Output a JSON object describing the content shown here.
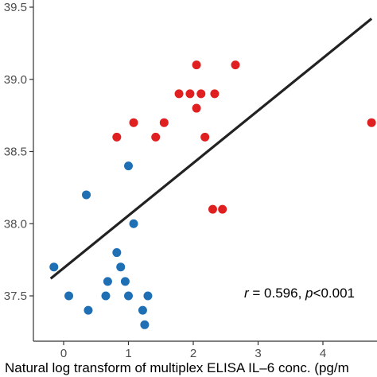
{
  "chart_data": {
    "type": "scatter",
    "title": "",
    "xlabel": "Natural log transform of multiplex ELISA IL–6 conc. (pg/m",
    "ylabel": "",
    "xlim": [
      -0.3,
      4.8
    ],
    "ylim": [
      37.22,
      39.55
    ],
    "x_ticks": [
      0,
      1,
      2,
      3,
      4
    ],
    "y_ticks": [
      37.5,
      38.0,
      38.5,
      39.0,
      39.5
    ],
    "x_tick_labels": [
      "0",
      "1",
      "2",
      "3",
      "4"
    ],
    "y_tick_labels": [
      "37.5",
      "38.0",
      "38.5",
      "39.0",
      "39.5"
    ],
    "grid": false,
    "legend": "none",
    "series": [
      {
        "color": "#1f6fb5",
        "points": [
          [
            -0.15,
            37.7
          ],
          [
            0.08,
            37.5
          ],
          [
            0.38,
            37.4
          ],
          [
            0.35,
            38.2
          ],
          [
            0.65,
            37.5
          ],
          [
            0.68,
            37.6
          ],
          [
            0.82,
            37.8
          ],
          [
            0.88,
            37.7
          ],
          [
            0.95,
            37.6
          ],
          [
            1.0,
            37.5
          ],
          [
            1.0,
            38.4
          ],
          [
            1.08,
            38.0
          ],
          [
            1.22,
            37.4
          ],
          [
            1.25,
            37.3
          ],
          [
            1.3,
            37.5
          ]
        ]
      },
      {
        "color": "#e02020",
        "points": [
          [
            0.82,
            38.6
          ],
          [
            1.08,
            38.7
          ],
          [
            1.42,
            38.6
          ],
          [
            1.55,
            38.7
          ],
          [
            1.78,
            38.9
          ],
          [
            1.95,
            38.9
          ],
          [
            2.05,
            39.1
          ],
          [
            2.05,
            38.8
          ],
          [
            2.12,
            38.9
          ],
          [
            2.18,
            38.6
          ],
          [
            2.3,
            38.1
          ],
          [
            2.33,
            38.9
          ],
          [
            2.45,
            38.1
          ],
          [
            2.65,
            39.1
          ],
          [
            4.75,
            38.7
          ]
        ]
      }
    ],
    "fit_line": {
      "x": [
        -0.2,
        4.75
      ],
      "y": [
        37.62,
        39.42
      ],
      "color": "#222222"
    },
    "annotation": {
      "r_symbol": "r",
      "r_text": " = 0.596, ",
      "p_symbol": "p",
      "p_text": "<0.001"
    }
  }
}
